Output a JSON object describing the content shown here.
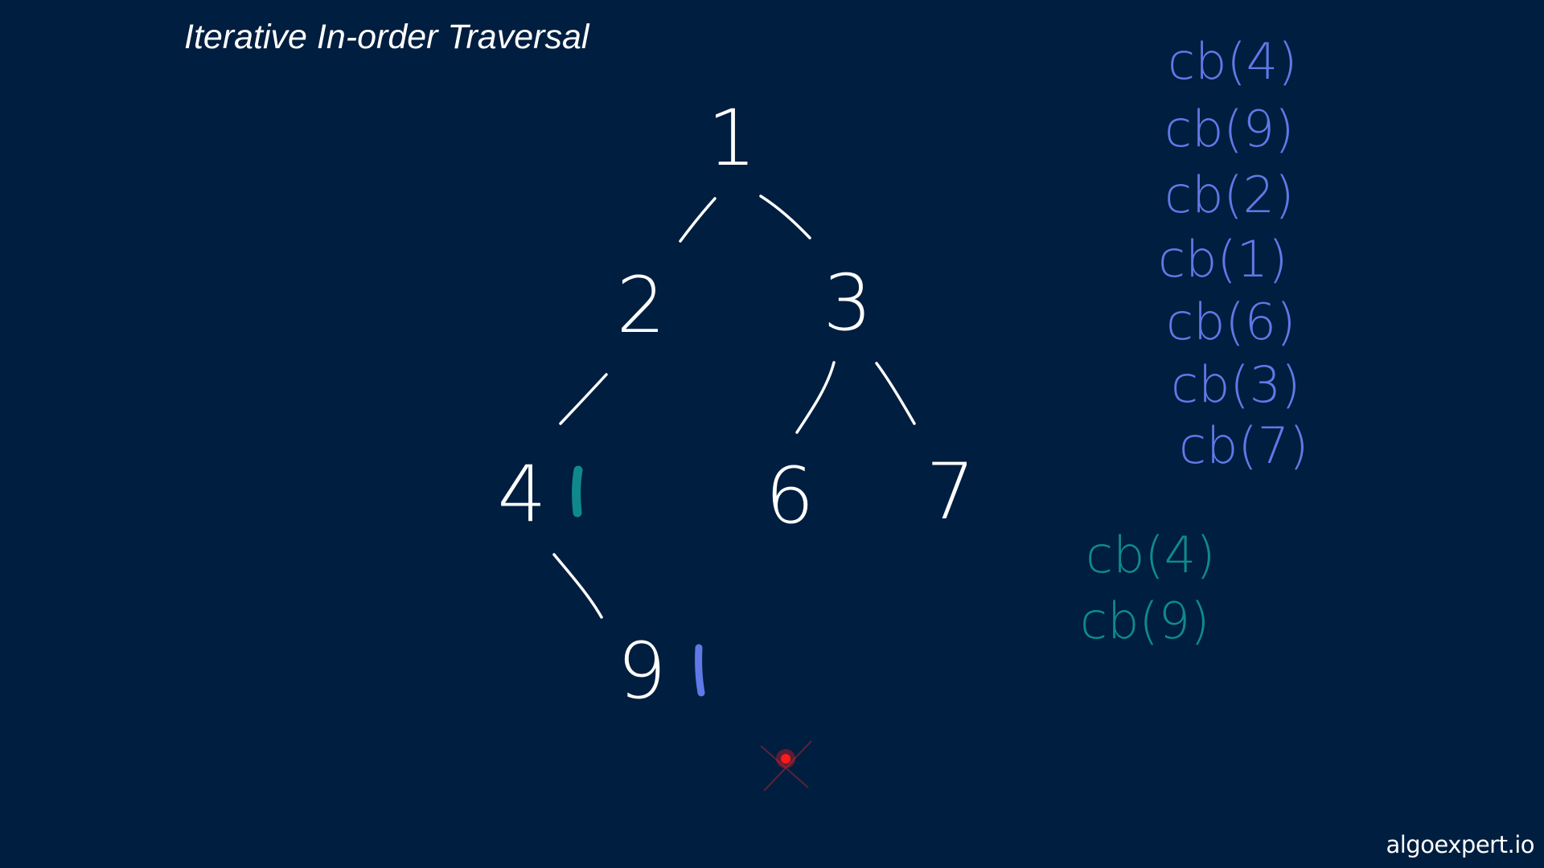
{
  "header": {
    "title": "Iterative In-order Traversal"
  },
  "brand": {
    "text": "algoexpert.io"
  },
  "colors": {
    "background": "#001e3f",
    "ink_white": "#ffffff",
    "ink_blue": "#5f79e8",
    "ink_teal": "#0f8a8c",
    "laser": "#ff1a1a"
  },
  "tree": {
    "nodes": [
      {
        "id": "n1",
        "label": "1"
      },
      {
        "id": "n2",
        "label": "2"
      },
      {
        "id": "n3",
        "label": "3"
      },
      {
        "id": "n4",
        "label": "4"
      },
      {
        "id": "n6",
        "label": "6"
      },
      {
        "id": "n7",
        "label": "7"
      },
      {
        "id": "n9",
        "label": "9"
      }
    ],
    "edges": [
      {
        "from": "1",
        "to": "2"
      },
      {
        "from": "1",
        "to": "3"
      },
      {
        "from": "2",
        "to": "4"
      },
      {
        "from": "3",
        "to": "6"
      },
      {
        "from": "3",
        "to": "7"
      },
      {
        "from": "4",
        "to": "9"
      }
    ],
    "marks": [
      {
        "near": "4",
        "color": "teal"
      },
      {
        "near": "9",
        "color": "blue"
      }
    ]
  },
  "callbacks_blue": [
    "cb(4)",
    "cb(9)",
    "cb(2)",
    "cb(1)",
    "cb(6)",
    "cb(3)",
    "cb(7)"
  ],
  "callbacks_teal": [
    "cb(4)",
    "cb(9)"
  ]
}
